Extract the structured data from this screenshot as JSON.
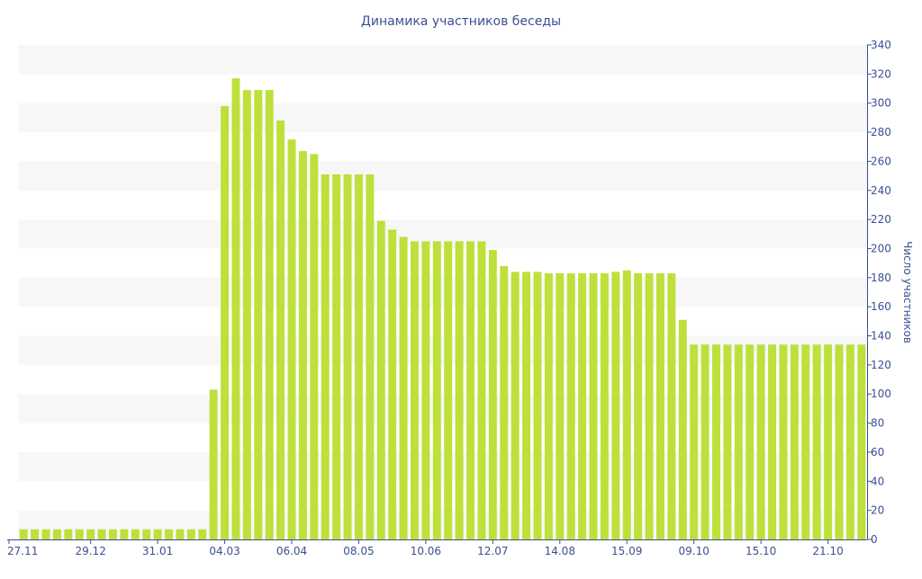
{
  "chart_data": {
    "type": "bar",
    "title": "Динамика участников беседы",
    "xlabel": "",
    "ylabel": "Число участников",
    "ylim": [
      0,
      340
    ],
    "y_ticks": [
      0,
      20,
      40,
      60,
      80,
      100,
      120,
      140,
      160,
      180,
      200,
      220,
      240,
      260,
      280,
      300,
      320,
      340
    ],
    "y_axis_position": "right",
    "grid": "alternating horizontal bands",
    "x_tick_labels": [
      "27.11",
      "29.12",
      "31.01",
      "04.03",
      "06.04",
      "08.05",
      "10.06",
      "12.07",
      "14.08",
      "15.09",
      "09.10",
      "15.10",
      "21.10"
    ],
    "x_tick_bar_index": [
      0,
      6,
      12,
      18,
      24,
      30,
      36,
      42,
      48,
      54,
      60,
      66,
      72
    ],
    "values": [
      7,
      7,
      7,
      7,
      7,
      7,
      7,
      7,
      7,
      7,
      7,
      7,
      7,
      7,
      7,
      7,
      7,
      103,
      298,
      317,
      309,
      309,
      309,
      288,
      275,
      267,
      265,
      251,
      251,
      251,
      251,
      251,
      219,
      213,
      208,
      205,
      205,
      205,
      205,
      205,
      205,
      205,
      199,
      188,
      184,
      184,
      184,
      183,
      183,
      183,
      183,
      183,
      183,
      184,
      185,
      183,
      183,
      183,
      183,
      151,
      134,
      134,
      134,
      134,
      134,
      134,
      134,
      134,
      134,
      134,
      134,
      134,
      134,
      134,
      134,
      134
    ],
    "colors": {
      "bar": "#bde03a",
      "band": "#f7f7f7",
      "text": "#3c4f94",
      "axis": "#3c4f94"
    }
  }
}
